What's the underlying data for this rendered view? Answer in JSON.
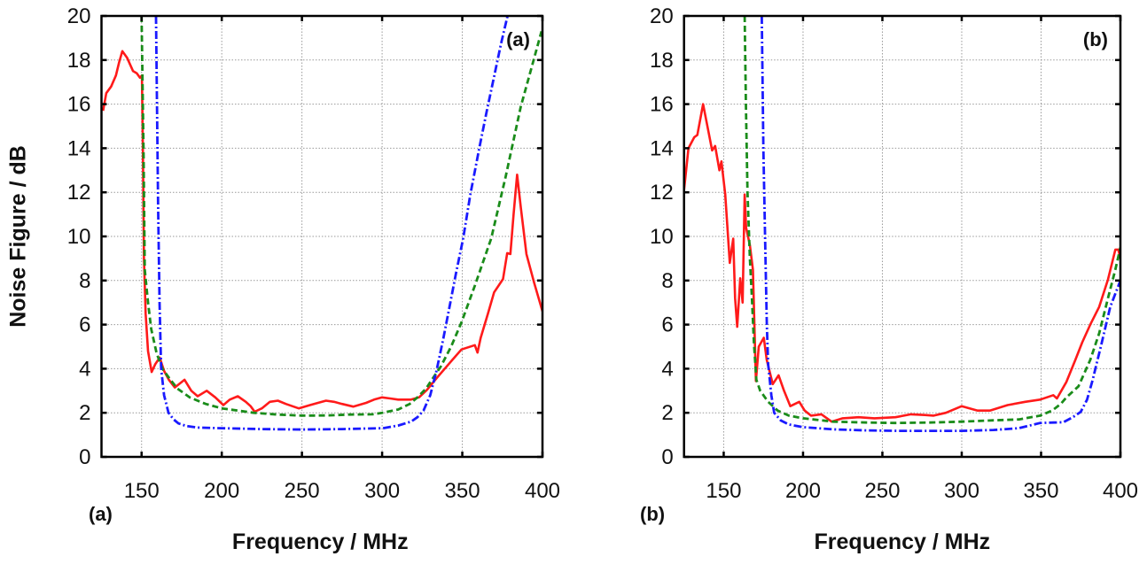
{
  "chart_data": [
    {
      "type": "line",
      "panel_label": "(a)",
      "corner_label": "(a)",
      "xlabel": "Frequency / MHz",
      "ylabel": "Noise Figure / dB",
      "xlim": [
        125,
        400
      ],
      "ylim": [
        0,
        20
      ],
      "xticks": [
        150,
        200,
        250,
        300,
        350,
        400
      ],
      "yticks": [
        0,
        2,
        4,
        6,
        8,
        10,
        12,
        14,
        16,
        18,
        20
      ],
      "grid": true,
      "series": [
        {
          "color": "#ff1a1a",
          "style": "solid",
          "x": [
            126,
            128,
            131,
            134,
            136,
            138,
            141,
            144.7,
            147,
            149,
            150.2,
            150.8,
            151.5,
            152.5,
            154,
            156.3,
            158.5,
            161.3,
            164,
            167,
            170.7,
            176.8,
            181,
            185,
            190.6,
            196,
            201,
            205,
            210,
            215,
            218,
            220.5,
            225,
            230,
            235,
            240,
            248,
            255,
            260,
            265,
            270,
            275,
            282,
            290,
            295,
            300,
            305,
            310,
            318,
            323,
            328,
            334,
            342,
            349.5,
            357.8,
            359.5,
            361.5,
            366,
            369.8,
            375.4,
            378,
            380,
            382,
            384.2,
            386.5,
            390,
            394.8,
            400
          ],
          "y": [
            15.7,
            16.5,
            16.8,
            17.3,
            17.9,
            18.4,
            18.1,
            17.5,
            17.4,
            17.2,
            17.3,
            14,
            9,
            6.5,
            4.8,
            3.85,
            4.2,
            4.5,
            3.9,
            3.5,
            3.15,
            3.5,
            3.0,
            2.75,
            3.0,
            2.7,
            2.35,
            2.6,
            2.75,
            2.5,
            2.3,
            2.05,
            2.2,
            2.5,
            2.55,
            2.4,
            2.2,
            2.35,
            2.45,
            2.55,
            2.5,
            2.4,
            2.28,
            2.45,
            2.6,
            2.7,
            2.65,
            2.6,
            2.6,
            2.7,
            3.04,
            3.57,
            4.25,
            4.87,
            5.07,
            4.73,
            5.4,
            6.5,
            7.46,
            8.07,
            9.24,
            9.2,
            11,
            12.8,
            11.3,
            9.2,
            7.9,
            6.6
          ]
        },
        {
          "color": "#1a8c1a",
          "style": "dashed",
          "x": [
            150,
            150.6,
            151.2,
            152,
            154,
            156,
            159.4,
            163,
            168,
            172.3,
            180,
            190,
            200,
            210,
            220,
            235,
            250,
            265,
            280,
            294,
            300,
            310,
            317.2,
            322,
            327.4,
            331,
            336.6,
            343,
            349.5,
            358,
            368,
            377,
            386.5,
            393,
            399.4
          ],
          "y": [
            20,
            17,
            14,
            8.5,
            7,
            5.8,
            4.7,
            4.0,
            3.5,
            3.1,
            2.7,
            2.4,
            2.2,
            2.1,
            2.0,
            1.92,
            1.87,
            1.88,
            1.92,
            1.93,
            2.0,
            2.15,
            2.4,
            2.7,
            3.1,
            3.5,
            4.1,
            5.0,
            6.1,
            7.8,
            9.9,
            12.7,
            15.9,
            17.6,
            19.3
          ]
        },
        {
          "color": "#1a1aff",
          "style": "dashdot",
          "x": [
            159,
            159.6,
            160.3,
            161.2,
            162.2,
            164,
            166.8,
            170,
            173,
            177.9,
            185,
            200,
            225,
            250,
            275,
            300.5,
            310,
            318,
            322,
            325.8,
            330,
            333.9,
            338,
            342,
            346,
            350.5,
            355,
            360.6,
            365,
            370,
            374,
            378.2
          ],
          "y": [
            20,
            16,
            11.3,
            7,
            4,
            2.8,
            2.0,
            1.7,
            1.52,
            1.4,
            1.33,
            1.3,
            1.26,
            1.24,
            1.26,
            1.3,
            1.42,
            1.6,
            1.8,
            2.1,
            2.8,
            3.9,
            5.3,
            6.8,
            8.3,
            9.9,
            11.9,
            14.0,
            15.6,
            17.3,
            18.7,
            20
          ]
        }
      ]
    },
    {
      "type": "line",
      "panel_label": "(b)",
      "corner_label": "(b)",
      "xlabel": "Frequency / MHz",
      "ylabel": "",
      "xlim": [
        125,
        400
      ],
      "ylim": [
        0,
        20
      ],
      "xticks": [
        150,
        200,
        250,
        300,
        350,
        400
      ],
      "yticks": [
        0,
        2,
        4,
        6,
        8,
        10,
        12,
        14,
        16,
        18,
        20
      ],
      "grid": true,
      "series": [
        {
          "color": "#ff1a1a",
          "style": "solid",
          "x": [
            125,
            127.8,
            131.5,
            133.4,
            137,
            142.7,
            144.6,
            147.3,
            148.6,
            151,
            153.8,
            156,
            157.2,
            158.5,
            160.4,
            161.9,
            163.2,
            164.1,
            166.5,
            168.4,
            170.3,
            172.1,
            175.3,
            177.1,
            180.9,
            184.6,
            188,
            192,
            197.6,
            201,
            205,
            211.6,
            218,
            225,
            235,
            245,
            258.2,
            268,
            276.8,
            282.3,
            290,
            300,
            310,
            317.7,
            328.9,
            340,
            349.4,
            357.7,
            360,
            366,
            371.6,
            376,
            381,
            386.6,
            392.2,
            396.8,
            398.7,
            400
          ],
          "y": [
            12.1,
            14.0,
            14.5,
            14.6,
            16.0,
            13.9,
            14.1,
            13.0,
            13.4,
            11.9,
            8.8,
            9.9,
            7.2,
            5.9,
            8.1,
            7.0,
            11.9,
            10.4,
            9.6,
            8.5,
            3.44,
            5.0,
            5.4,
            4.4,
            3.3,
            3.7,
            3.0,
            2.3,
            2.5,
            2.1,
            1.87,
            1.93,
            1.6,
            1.75,
            1.8,
            1.75,
            1.8,
            1.93,
            1.9,
            1.87,
            2.0,
            2.3,
            2.1,
            2.1,
            2.35,
            2.5,
            2.6,
            2.8,
            2.65,
            3.4,
            4.4,
            5.2,
            6.0,
            6.8,
            8.05,
            9.4,
            9.4,
            9.0
          ]
        },
        {
          "color": "#1a8c1a",
          "style": "dashed",
          "x": [
            163.2,
            164,
            165,
            166.5,
            167.8,
            169,
            170.6,
            173,
            178,
            184,
            191,
            200,
            219,
            240,
            258,
            280,
            300,
            320,
            336,
            349.4,
            357,
            362.4,
            366,
            373.6,
            381,
            386.6,
            392.2,
            396.8,
            400
          ],
          "y": [
            20,
            16,
            12,
            9,
            7.2,
            5.2,
            3.5,
            3.0,
            2.5,
            2.1,
            1.87,
            1.75,
            1.6,
            1.56,
            1.54,
            1.56,
            1.6,
            1.66,
            1.7,
            1.87,
            2.1,
            2.4,
            2.7,
            3.2,
            4.4,
            5.6,
            7.2,
            8.5,
            9.5
          ]
        },
        {
          "color": "#1a1aff",
          "style": "dashdot",
          "x": [
            174,
            175,
            176.2,
            177.2,
            178,
            180,
            181.8,
            186,
            191,
            200,
            219,
            240,
            260,
            280,
            300,
            320,
            336,
            349.4,
            358,
            364,
            370,
            375,
            379,
            382.4,
            388,
            393.6,
            400
          ],
          "y": [
            20,
            14,
            9.4,
            6,
            4.2,
            2.8,
            2.0,
            1.65,
            1.47,
            1.35,
            1.25,
            1.2,
            1.18,
            1.18,
            1.18,
            1.22,
            1.3,
            1.54,
            1.56,
            1.57,
            1.8,
            2.04,
            2.6,
            3.46,
            5.1,
            6.8,
            8.0
          ]
        }
      ]
    }
  ]
}
